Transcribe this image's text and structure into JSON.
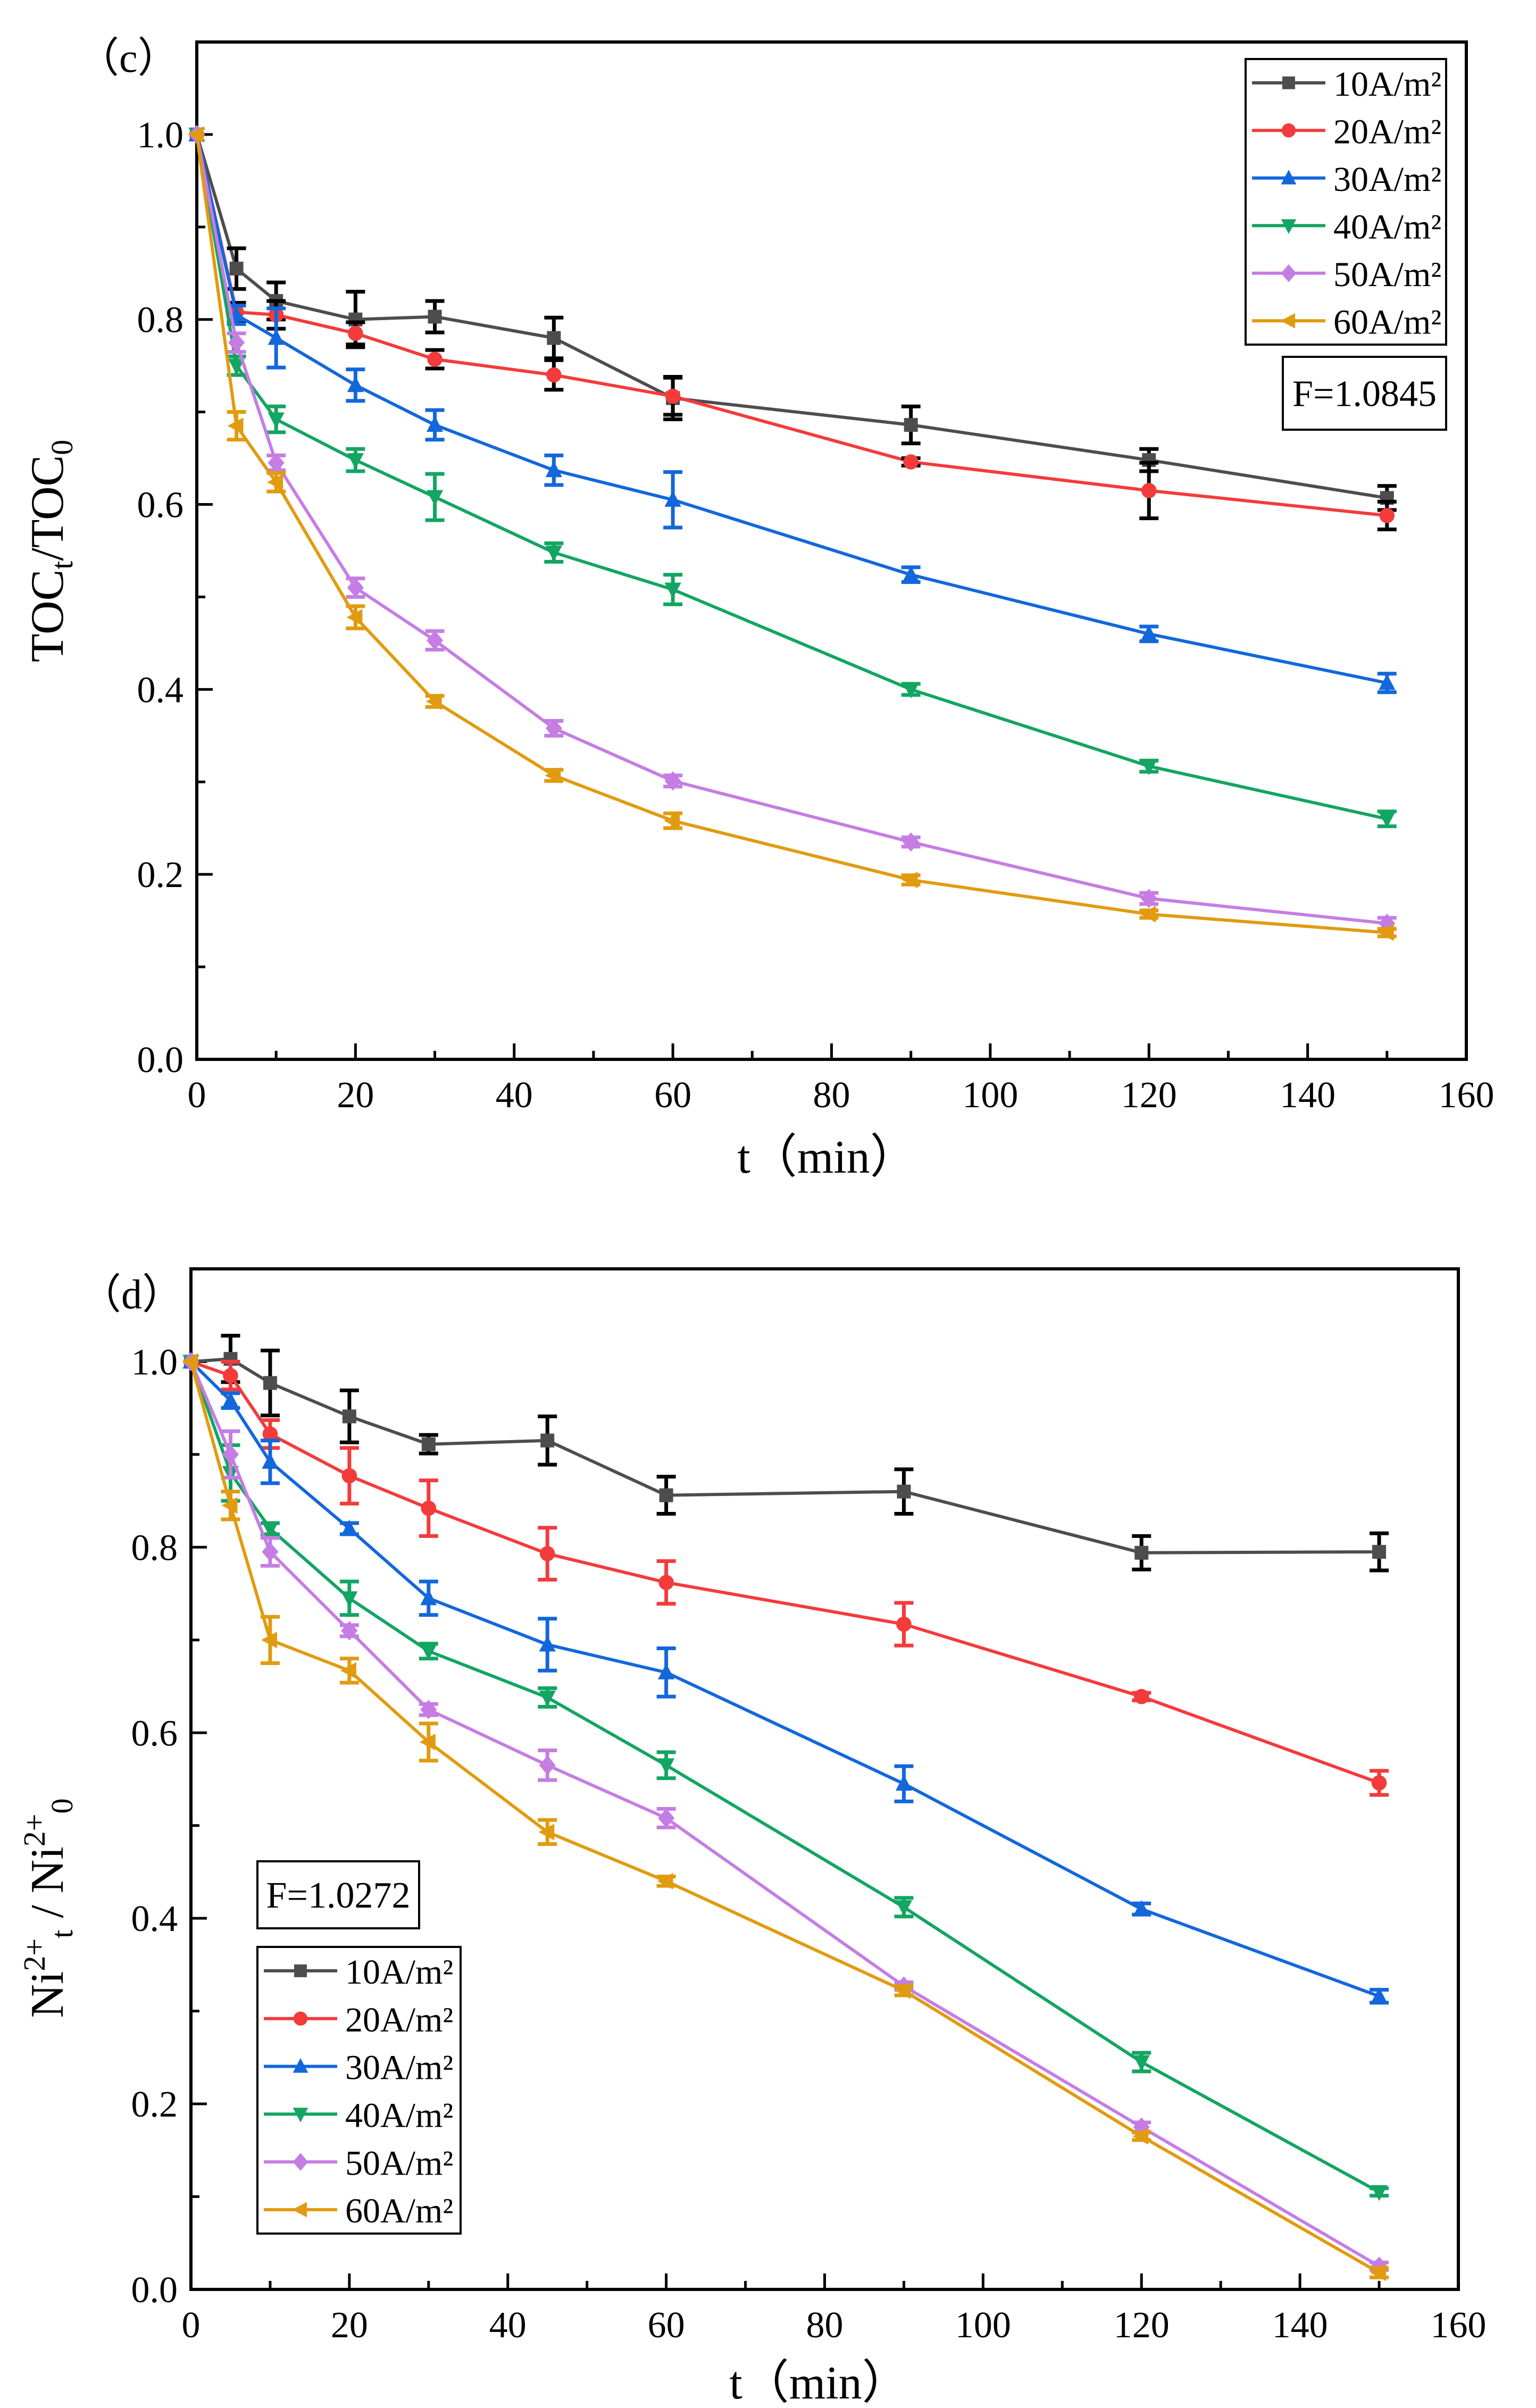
{
  "colors": {
    "10A/m²": "#4d4d4d",
    "20A/m²": "#f33b3b",
    "30A/m²": "#1367dc",
    "40A/m²": "#13a562",
    "50A/m²": "#c57de3",
    "60A/m²": "#e19b10"
  },
  "chart_data": [
    {
      "type": "line",
      "panel_label": "（c）",
      "xlabel": "t（min）",
      "ylabel_parts": [
        [
          "TOC",
          ""
        ],
        [
          "t",
          "sub"
        ],
        [
          "/TOC",
          ""
        ],
        [
          "0",
          "sub"
        ]
      ],
      "xlim": [
        0,
        160
      ],
      "ylim": [
        0,
        1.1
      ],
      "xticks": [
        0,
        20,
        40,
        60,
        80,
        100,
        120,
        140,
        160
      ],
      "yticks": [
        0.0,
        0.2,
        0.4,
        0.6,
        0.8,
        1.0
      ],
      "annotation": "F=1.0845",
      "legend_position": "top-right",
      "x": [
        0,
        5,
        10,
        20,
        30,
        45,
        60,
        90,
        120,
        150
      ],
      "series": [
        {
          "name": "10A/m²",
          "marker": "square",
          "values": [
            1.0,
            0.855,
            0.82,
            0.8,
            0.803,
            0.78,
            0.715,
            0.686,
            0.648,
            0.607
          ],
          "errors": [
            0,
            0.022,
            0.02,
            0.03,
            0.017,
            0.022,
            0.023,
            0.02,
            0.012,
            0.013
          ],
          "error_color": "#000000"
        },
        {
          "name": "20A/m²",
          "marker": "circle",
          "values": [
            1.0,
            0.808,
            0.805,
            0.785,
            0.757,
            0.74,
            0.717,
            0.646,
            0.615,
            0.588
          ],
          "errors": [
            0,
            0.01,
            0.015,
            0.012,
            0.01,
            0.016,
            0.02,
            0.004,
            0.03,
            0.015
          ],
          "error_color": "#000000"
        },
        {
          "name": "30A/m²",
          "marker": "triangle-up",
          "values": [
            1.0,
            0.805,
            0.78,
            0.729,
            0.686,
            0.637,
            0.605,
            0.524,
            0.46,
            0.407
          ],
          "errors": [
            0,
            0.01,
            0.032,
            0.017,
            0.016,
            0.016,
            0.03,
            0.008,
            0.008,
            0.01
          ],
          "error_color": "#1367dc"
        },
        {
          "name": "40A/m²",
          "marker": "triangle-down",
          "values": [
            1.0,
            0.75,
            0.692,
            0.648,
            0.608,
            0.548,
            0.508,
            0.4,
            0.317,
            0.26
          ],
          "errors": [
            0,
            0.01,
            0.014,
            0.012,
            0.025,
            0.01,
            0.016,
            0.006,
            0.006,
            0.008
          ],
          "error_color": "#13a562"
        },
        {
          "name": "50A/m²",
          "marker": "diamond",
          "values": [
            1.0,
            0.775,
            0.645,
            0.51,
            0.453,
            0.358,
            0.301,
            0.235,
            0.174,
            0.147
          ],
          "errors": [
            0,
            0.01,
            0.008,
            0.01,
            0.01,
            0.008,
            0.006,
            0.005,
            0.006,
            0.006
          ],
          "error_color": "#c57de3"
        },
        {
          "name": "60A/m²",
          "marker": "triangle-left",
          "values": [
            1.0,
            0.685,
            0.624,
            0.478,
            0.387,
            0.307,
            0.258,
            0.194,
            0.157,
            0.137
          ],
          "errors": [
            0,
            0.015,
            0.01,
            0.012,
            0.006,
            0.006,
            0.008,
            0.005,
            0.004,
            0.004
          ],
          "error_color": "#e19b10"
        }
      ]
    },
    {
      "type": "line",
      "panel_label": "（d）",
      "xlabel": "t（min）",
      "ylabel_parts": [
        [
          "Ni",
          ""
        ],
        [
          "2+",
          "sup"
        ],
        [
          "t",
          "sub"
        ],
        [
          " / Ni",
          ""
        ],
        [
          "2+",
          "sup"
        ],
        [
          "0",
          "sub"
        ]
      ],
      "xlim": [
        0,
        160
      ],
      "ylim": [
        0,
        1.1
      ],
      "xticks": [
        0,
        20,
        40,
        60,
        80,
        100,
        120,
        140,
        160
      ],
      "yticks": [
        0.0,
        0.2,
        0.4,
        0.6,
        0.8,
        1.0
      ],
      "annotation": "F=1.0272",
      "legend_position": "bottom-left",
      "x": [
        0,
        5,
        10,
        20,
        30,
        45,
        60,
        90,
        120,
        150
      ],
      "series": [
        {
          "name": "10A/m²",
          "marker": "square",
          "values": [
            1.0,
            1.003,
            0.977,
            0.941,
            0.911,
            0.915,
            0.856,
            0.86,
            0.794,
            0.795
          ],
          "errors": [
            0,
            0.025,
            0.035,
            0.028,
            0.01,
            0.026,
            0.02,
            0.024,
            0.018,
            0.02
          ],
          "error_color": "#000000"
        },
        {
          "name": "20A/m²",
          "marker": "circle",
          "values": [
            1.0,
            0.985,
            0.922,
            0.877,
            0.842,
            0.793,
            0.762,
            0.717,
            0.639,
            0.546
          ],
          "errors": [
            0,
            0.015,
            0.015,
            0.03,
            0.03,
            0.028,
            0.023,
            0.023,
            0.004,
            0.013
          ],
          "error_color": "#f33b3b"
        },
        {
          "name": "30A/m²",
          "marker": "triangle-up",
          "values": [
            1.0,
            0.958,
            0.892,
            0.82,
            0.745,
            0.695,
            0.665,
            0.545,
            0.41,
            0.316
          ],
          "errors": [
            0,
            0.008,
            0.023,
            0.006,
            0.018,
            0.028,
            0.026,
            0.019,
            0.006,
            0.007
          ],
          "error_color": "#1367dc"
        },
        {
          "name": "40A/m²",
          "marker": "triangle-down",
          "values": [
            1.0,
            0.88,
            0.82,
            0.745,
            0.688,
            0.638,
            0.565,
            0.412,
            0.245,
            0.105
          ],
          "errors": [
            0,
            0.03,
            0.006,
            0.018,
            0.008,
            0.01,
            0.014,
            0.01,
            0.01,
            0.004
          ],
          "error_color": "#13a562"
        },
        {
          "name": "50A/m²",
          "marker": "diamond",
          "values": [
            1.0,
            0.9,
            0.795,
            0.71,
            0.625,
            0.565,
            0.508,
            0.327,
            0.175,
            0.025
          ],
          "errors": [
            0,
            0.025,
            0.015,
            0.006,
            0.006,
            0.016,
            0.01,
            0.004,
            0.005,
            0.004
          ],
          "error_color": "#c57de3"
        },
        {
          "name": "60A/m²",
          "marker": "triangle-left",
          "values": [
            1.0,
            0.845,
            0.7,
            0.667,
            0.59,
            0.493,
            0.44,
            0.322,
            0.165,
            0.018
          ],
          "errors": [
            0,
            0.015,
            0.025,
            0.013,
            0.02,
            0.013,
            0.005,
            0.005,
            0.004,
            0.005
          ],
          "error_color": "#e19b10"
        }
      ]
    }
  ]
}
